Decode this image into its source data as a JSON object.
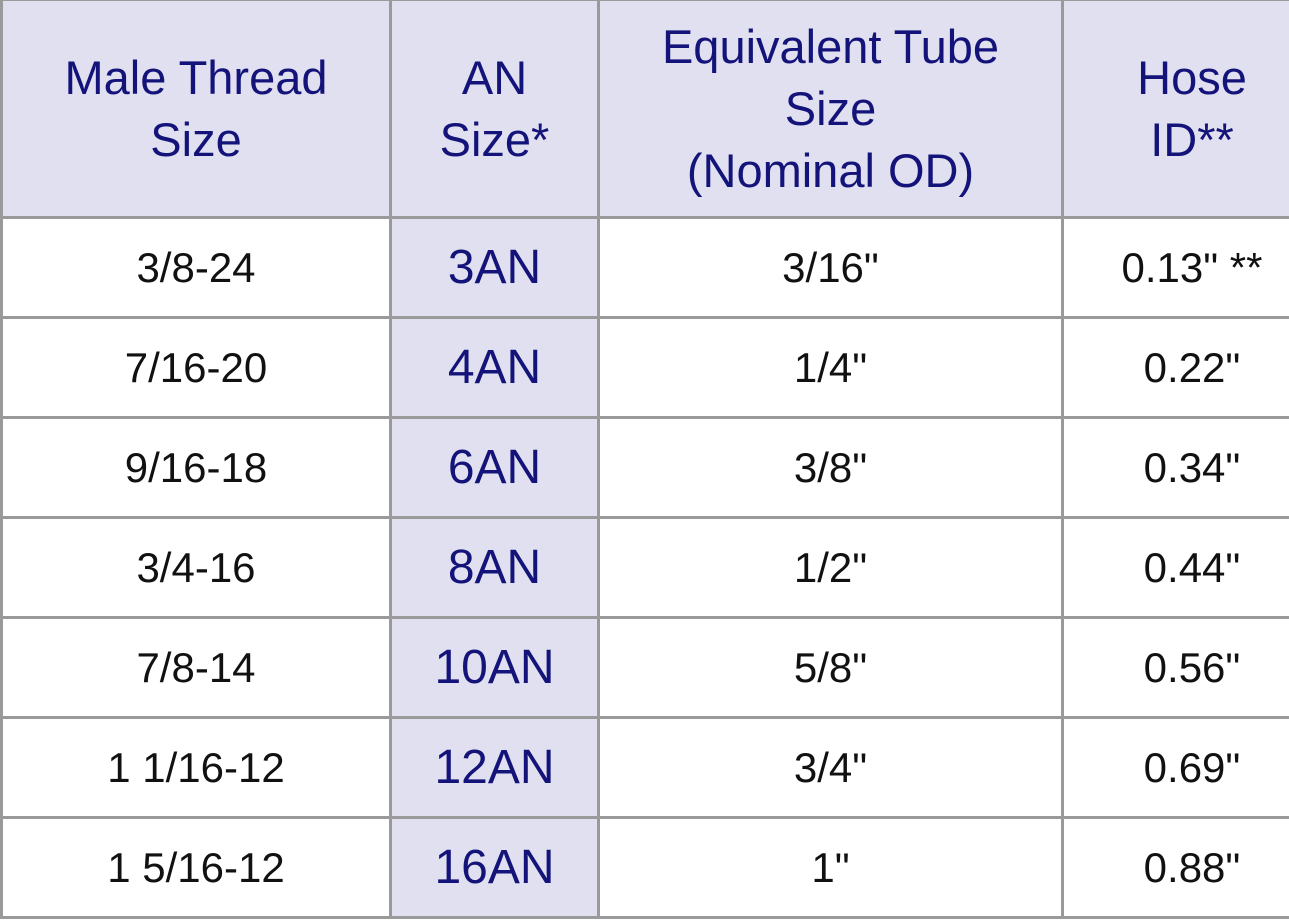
{
  "table": {
    "header": [
      [
        "Male Thread",
        "Size"
      ],
      [
        "AN",
        "Size*"
      ],
      [
        "Equivalent Tube",
        "Size",
        "(Nominal OD)"
      ],
      [
        "Hose",
        "ID**"
      ]
    ],
    "rows": [
      [
        "3/8-24",
        "3AN",
        "3/16\"",
        "0.13\" **"
      ],
      [
        "7/16-20",
        "4AN",
        "1/4\"",
        "0.22\""
      ],
      [
        "9/16-18",
        "6AN",
        "3/8\"",
        "0.34\""
      ],
      [
        "3/4-16",
        "8AN",
        "1/2\"",
        "0.44\""
      ],
      [
        "7/8-14",
        "10AN",
        "5/8\"",
        "0.56\""
      ],
      [
        "1 1/16-12",
        "12AN",
        "3/4\"",
        "0.69\""
      ],
      [
        "1 5/16-12",
        "16AN",
        "1\"",
        "0.88\""
      ]
    ]
  }
}
